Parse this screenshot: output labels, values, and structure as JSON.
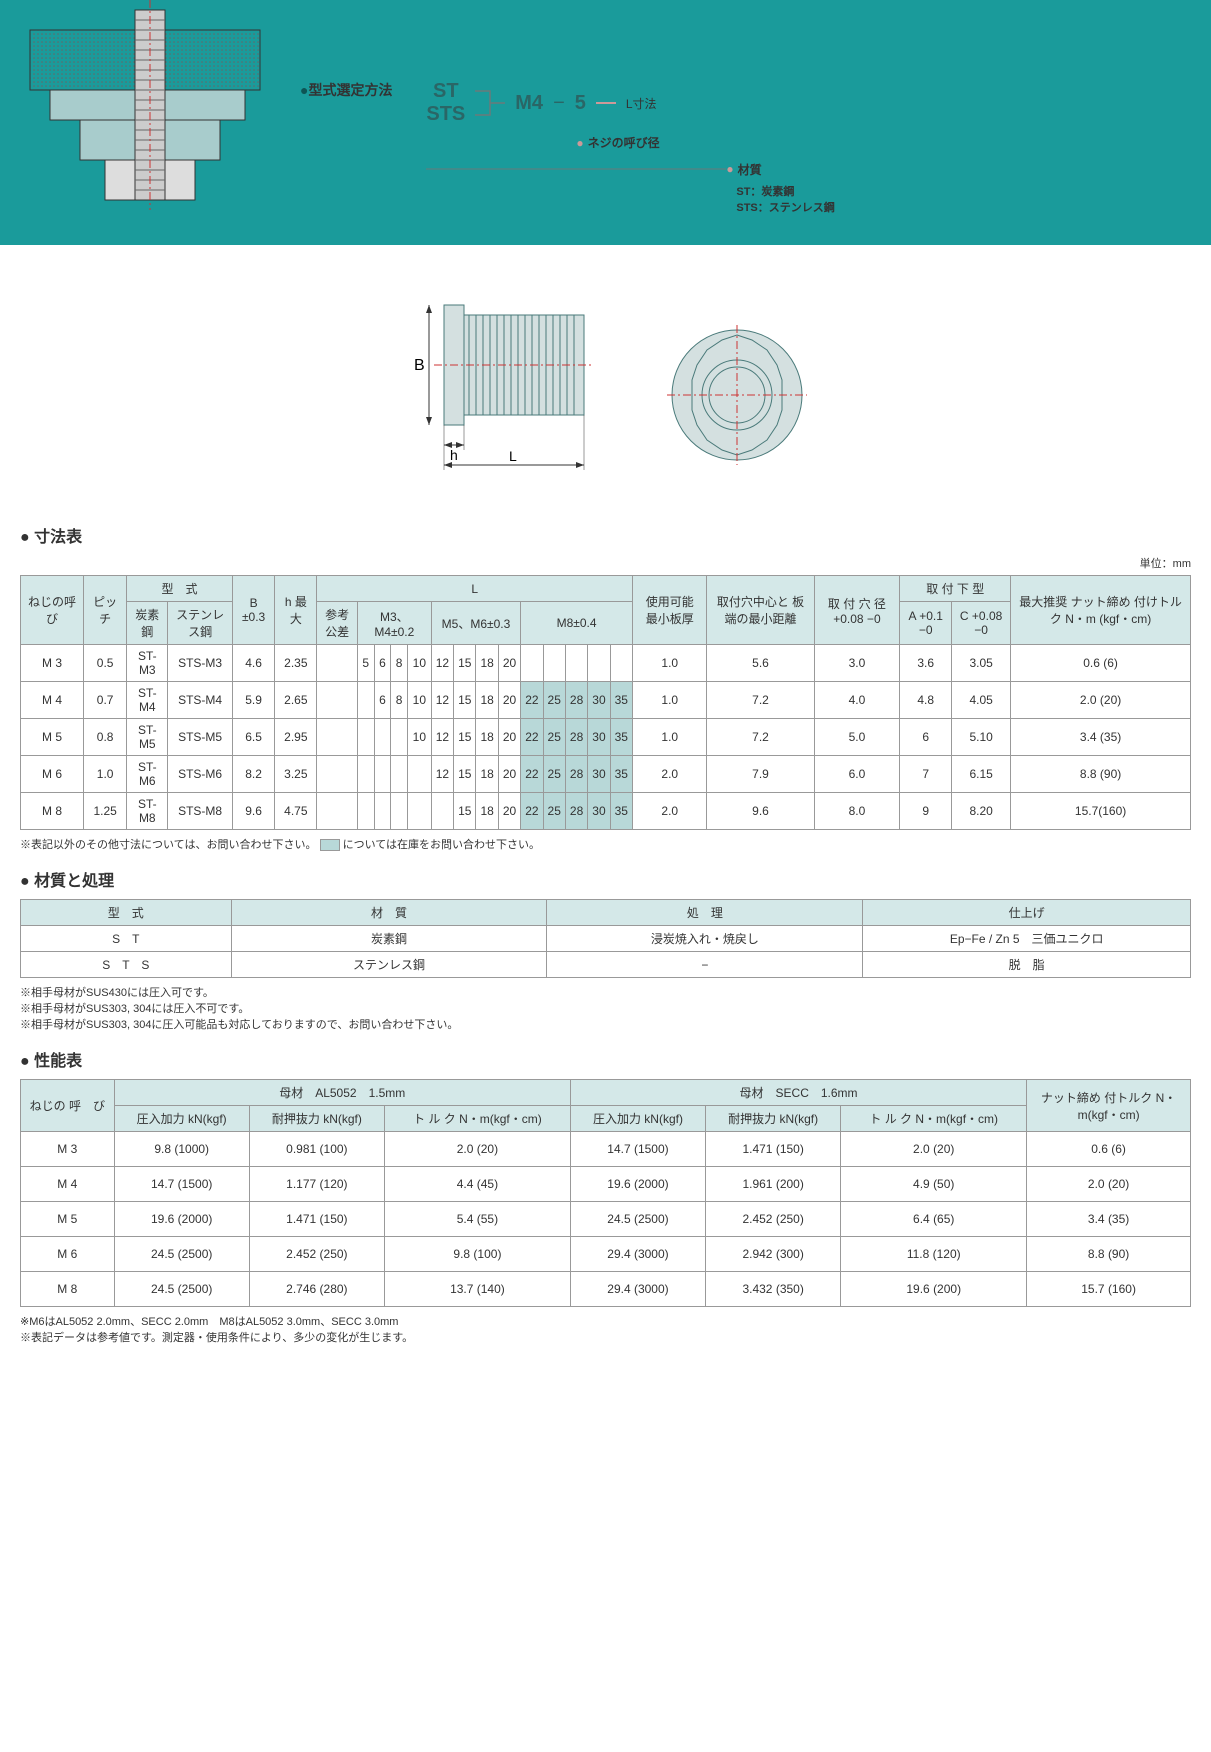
{
  "header": {
    "selection_label": "型式選定方法",
    "st_code": "ST",
    "sts_code": "STS",
    "m4": "M4",
    "dash": "−",
    "five": "5",
    "l_label": "L寸法",
    "thread_label": "ネジの呼び径",
    "material_label": "材質",
    "st_desc": "ST：炭素鋼",
    "sts_desc": "STS：ステンレス鋼"
  },
  "colors": {
    "header_bg": "#1a9b9b",
    "table_header": "#d4e8e8",
    "shaded_cell": "#b8d8d8",
    "border": "#999999"
  },
  "dim_section": {
    "title": "寸法表",
    "unit": "単位：mm",
    "headers": {
      "thread": "ねじの呼　び",
      "pitch": "ピッチ",
      "model": "型　式",
      "carbon": "炭素鋼",
      "stainless": "ステンレス鋼",
      "B": "B ±0.3",
      "h": "h 最大",
      "L": "L",
      "ref_tol": "参考公差",
      "m3m4": "M3、M4±0.2",
      "m5m6": "M5、M6±0.3",
      "m8": "M8±0.4",
      "min_thick": "使用可能 最小板厚",
      "hole_edge": "取付穴中心と 板端の最小距離",
      "hole_dia": "取 付 穴 径 +0.08 −0",
      "mount_bottom": "取 付 下 型",
      "A_tol": "A +0.1 −0",
      "C_tol": "C +0.08 −0",
      "max_torque": "最大推奨 ナット締め 付けトルク N・m (kgf・cm)"
    },
    "L_values": [
      "5",
      "6",
      "8",
      "10",
      "12",
      "15",
      "18",
      "20",
      "22",
      "25",
      "28",
      "30",
      "35"
    ],
    "rows": [
      {
        "thread": "M 3",
        "pitch": "0.5",
        "carbon": "ST-M3",
        "stainless": "STS-M3",
        "B": "4.6",
        "h": "2.35",
        "L_idx": [
          0,
          1,
          2,
          3,
          4,
          5,
          6,
          7
        ],
        "shaded": [],
        "thick": "1.0",
        "edge": "5.6",
        "hole": "3.0",
        "A": "3.6",
        "C": "3.05",
        "torque": "0.6 (6)"
      },
      {
        "thread": "M 4",
        "pitch": "0.7",
        "carbon": "ST-M4",
        "stainless": "STS-M4",
        "B": "5.9",
        "h": "2.65",
        "L_idx": [
          1,
          2,
          3,
          4,
          5,
          6,
          7,
          8,
          9,
          10,
          11,
          12
        ],
        "shaded": [
          8,
          9,
          10,
          11,
          12
        ],
        "thick": "1.0",
        "edge": "7.2",
        "hole": "4.0",
        "A": "4.8",
        "C": "4.05",
        "torque": "2.0 (20)"
      },
      {
        "thread": "M 5",
        "pitch": "0.8",
        "carbon": "ST-M5",
        "stainless": "STS-M5",
        "B": "6.5",
        "h": "2.95",
        "L_idx": [
          3,
          4,
          5,
          6,
          7,
          8,
          9,
          10,
          11,
          12
        ],
        "shaded": [
          8,
          9,
          10,
          11,
          12
        ],
        "thick": "1.0",
        "edge": "7.2",
        "hole": "5.0",
        "A": "6",
        "C": "5.10",
        "torque": "3.4 (35)"
      },
      {
        "thread": "M 6",
        "pitch": "1.0",
        "carbon": "ST-M6",
        "stainless": "STS-M6",
        "B": "8.2",
        "h": "3.25",
        "L_idx": [
          4,
          5,
          6,
          7,
          8,
          9,
          10,
          11,
          12
        ],
        "shaded": [
          8,
          9,
          10,
          11,
          12
        ],
        "thick": "2.0",
        "edge": "7.9",
        "hole": "6.0",
        "A": "7",
        "C": "6.15",
        "torque": "8.8 (90)"
      },
      {
        "thread": "M 8",
        "pitch": "1.25",
        "carbon": "ST-M8",
        "stainless": "STS-M8",
        "B": "9.6",
        "h": "4.75",
        "L_idx": [
          5,
          6,
          7,
          8,
          9,
          10,
          11,
          12
        ],
        "shaded": [
          8,
          9,
          10,
          11,
          12
        ],
        "thick": "2.0",
        "edge": "9.6",
        "hole": "8.0",
        "A": "9",
        "C": "8.20",
        "torque": "15.7(160)"
      }
    ],
    "note1": "※表記以外のその他寸法については、お問い合わせ下さい。",
    "note2": "については在庫をお問い合わせ下さい。"
  },
  "mat_section": {
    "title": "材質と処理",
    "headers": {
      "model": "型　式",
      "material": "材　質",
      "treatment": "処　理",
      "finish": "仕上げ"
    },
    "rows": [
      {
        "model": "S　T",
        "material": "炭素鋼",
        "treatment": "浸炭焼入れ・焼戻し",
        "finish": "Ep−Fe / Zn 5　三価ユニクロ"
      },
      {
        "model": "S　T　S",
        "material": "ステンレス鋼",
        "treatment": "−",
        "finish": "脱　脂"
      }
    ],
    "notes": [
      "※相手母材がSUS430には圧入可です。",
      "※相手母材がSUS303, 304には圧入不可です。",
      "※相手母材がSUS303, 304に圧入可能品も対応しておりますので、お問い合わせ下さい。"
    ]
  },
  "perf_section": {
    "title": "性能表",
    "headers": {
      "thread": "ねじの 呼　び",
      "base1": "母材　AL5052　1.5mm",
      "base2": "母材　SECC　1.6mm",
      "press": "圧入加力 kN(kgf)",
      "pushout": "耐押抜力 kN(kgf)",
      "torque": "ト ル ク N・m(kgf・cm)",
      "nut_torque": "ナット締め 付トルク N・m(kgf・cm)"
    },
    "rows": [
      {
        "thread": "M 3",
        "p1": "9.8 (1000)",
        "po1": "0.981 (100)",
        "t1": "2.0 (20)",
        "p2": "14.7 (1500)",
        "po2": "1.471 (150)",
        "t2": "2.0 (20)",
        "nt": "0.6 (6)"
      },
      {
        "thread": "M 4",
        "p1": "14.7 (1500)",
        "po1": "1.177 (120)",
        "t1": "4.4 (45)",
        "p2": "19.6 (2000)",
        "po2": "1.961 (200)",
        "t2": "4.9 (50)",
        "nt": "2.0 (20)"
      },
      {
        "thread": "M 5",
        "p1": "19.6 (2000)",
        "po1": "1.471 (150)",
        "t1": "5.4 (55)",
        "p2": "24.5 (2500)",
        "po2": "2.452 (250)",
        "t2": "6.4 (65)",
        "nt": "3.4 (35)"
      },
      {
        "thread": "M 6",
        "p1": "24.5 (2500)",
        "po1": "2.452 (250)",
        "t1": "9.8 (100)",
        "p2": "29.4 (3000)",
        "po2": "2.942 (300)",
        "t2": "11.8 (120)",
        "nt": "8.8 (90)"
      },
      {
        "thread": "M 8",
        "p1": "24.5 (2500)",
        "po1": "2.746 (280)",
        "t1": "13.7 (140)",
        "p2": "29.4 (3000)",
        "po2": "3.432 (350)",
        "t2": "19.6 (200)",
        "nt": "15.7 (160)"
      }
    ],
    "notes": [
      "※M6はAL5052 2.0mm、SECC 2.0mm　M8はAL5052 3.0mm、SECC 3.0mm",
      "※表記データは参考値です。測定器・使用条件により、多少の変化が生じます。"
    ]
  }
}
